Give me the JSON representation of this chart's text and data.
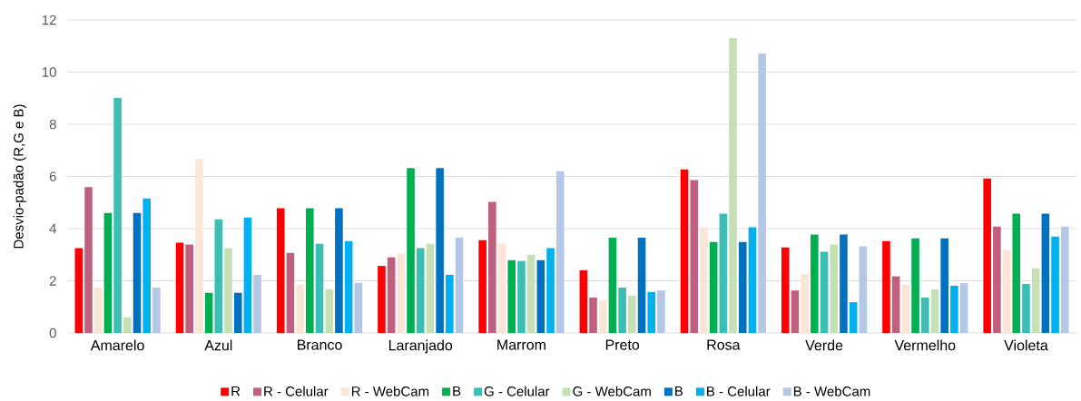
{
  "chart_data": {
    "type": "bar",
    "ylabel": "Desvio-padão (R,G e B)",
    "categories": [
      "Amarelo",
      "Azul",
      "Branco",
      "Laranjado",
      "Marrom",
      "Preto",
      "Rosa",
      "Verde",
      "Vermelho",
      "Violeta"
    ],
    "series": [
      {
        "name": "R",
        "color": "#ff0000",
        "values": [
          3.25,
          3.46,
          4.78,
          2.57,
          3.56,
          2.4,
          6.27,
          3.28,
          3.52,
          5.92
        ]
      },
      {
        "name": "R - Celular",
        "color": "#c0607f",
        "values": [
          5.59,
          3.39,
          3.07,
          2.9,
          5.03,
          1.36,
          5.86,
          1.63,
          2.17,
          4.08
        ]
      },
      {
        "name": "R - WebCam",
        "color": "#fbe5d6",
        "values": [
          1.74,
          6.67,
          1.86,
          3.04,
          3.43,
          1.25,
          4.05,
          2.26,
          1.86,
          3.18
        ]
      },
      {
        "name": "B",
        "color": "#00b050",
        "values": [
          4.6,
          1.54,
          4.78,
          6.32,
          2.79,
          3.65,
          3.49,
          3.77,
          3.63,
          4.57
        ]
      },
      {
        "name": "G - Celular",
        "color": "#3bbeb3",
        "values": [
          9.01,
          4.36,
          3.42,
          3.25,
          2.76,
          1.74,
          4.57,
          3.11,
          1.36,
          1.88
        ]
      },
      {
        "name": "G - WebCam",
        "color": "#c5e0b4",
        "values": [
          0.6,
          3.25,
          1.68,
          3.42,
          3.0,
          1.43,
          11.3,
          3.39,
          1.67,
          2.48
        ]
      },
      {
        "name": "B",
        "color": "#0070c0",
        "values": [
          4.6,
          1.54,
          4.78,
          6.32,
          2.79,
          3.65,
          3.49,
          3.77,
          3.63,
          4.57
        ]
      },
      {
        "name": "B - Celular",
        "color": "#00b0f0",
        "values": [
          5.16,
          4.43,
          3.52,
          2.23,
          3.25,
          1.57,
          4.05,
          1.18,
          1.81,
          3.7
        ]
      },
      {
        "name": "B - WebCam",
        "color": "#b4c7e7",
        "values": [
          1.74,
          2.23,
          1.92,
          3.66,
          6.2,
          1.63,
          10.71,
          3.32,
          1.91,
          4.08
        ]
      }
    ],
    "ylim": [
      0,
      12
    ],
    "yticks": [
      0,
      2,
      4,
      6,
      8,
      10,
      12
    ],
    "grid": "y",
    "legend": "bottom"
  }
}
